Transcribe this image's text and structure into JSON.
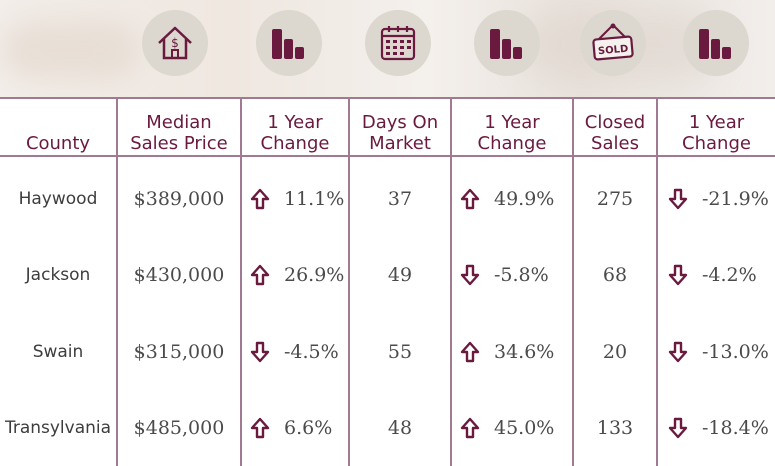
{
  "header_icons": [
    "house-dollar-icon",
    "bar-chart-icon",
    "calendar-icon",
    "bar-chart-icon",
    "sold-sign-icon",
    "bar-chart-icon"
  ],
  "colors": {
    "accent": "#6a1a3f",
    "grid": "#a07a93",
    "icon_bg": "#dcd7cf"
  },
  "columns": [
    "County",
    "Median\nSales Price",
    "1 Year\nChange",
    "Days On\nMarket",
    "1 Year\nChange",
    "Closed\nSales",
    "1 Year\nChange"
  ],
  "rows": [
    {
      "county": "Haywood",
      "price": "$389,000",
      "price_dir": "up",
      "price_change": "11.1%",
      "days": "37",
      "days_dir": "up",
      "days_change": "49.9%",
      "closed": "275",
      "closed_dir": "down",
      "closed_change": "-21.9%"
    },
    {
      "county": "Jackson",
      "price": "$430,000",
      "price_dir": "up",
      "price_change": "26.9%",
      "days": "49",
      "days_dir": "down",
      "days_change": "-5.8%",
      "closed": "68",
      "closed_dir": "down",
      "closed_change": "-4.2%"
    },
    {
      "county": "Swain",
      "price": "$315,000",
      "price_dir": "down",
      "price_change": "-4.5%",
      "days": "55",
      "days_dir": "up",
      "days_change": "34.6%",
      "closed": "20",
      "closed_dir": "down",
      "closed_change": "-13.0%"
    },
    {
      "county": "Transylvania",
      "price": "$485,000",
      "price_dir": "up",
      "price_change": "6.6%",
      "days": "48",
      "days_dir": "up",
      "days_change": "45.0%",
      "closed": "133",
      "closed_dir": "down",
      "closed_change": "-18.4%"
    }
  ]
}
